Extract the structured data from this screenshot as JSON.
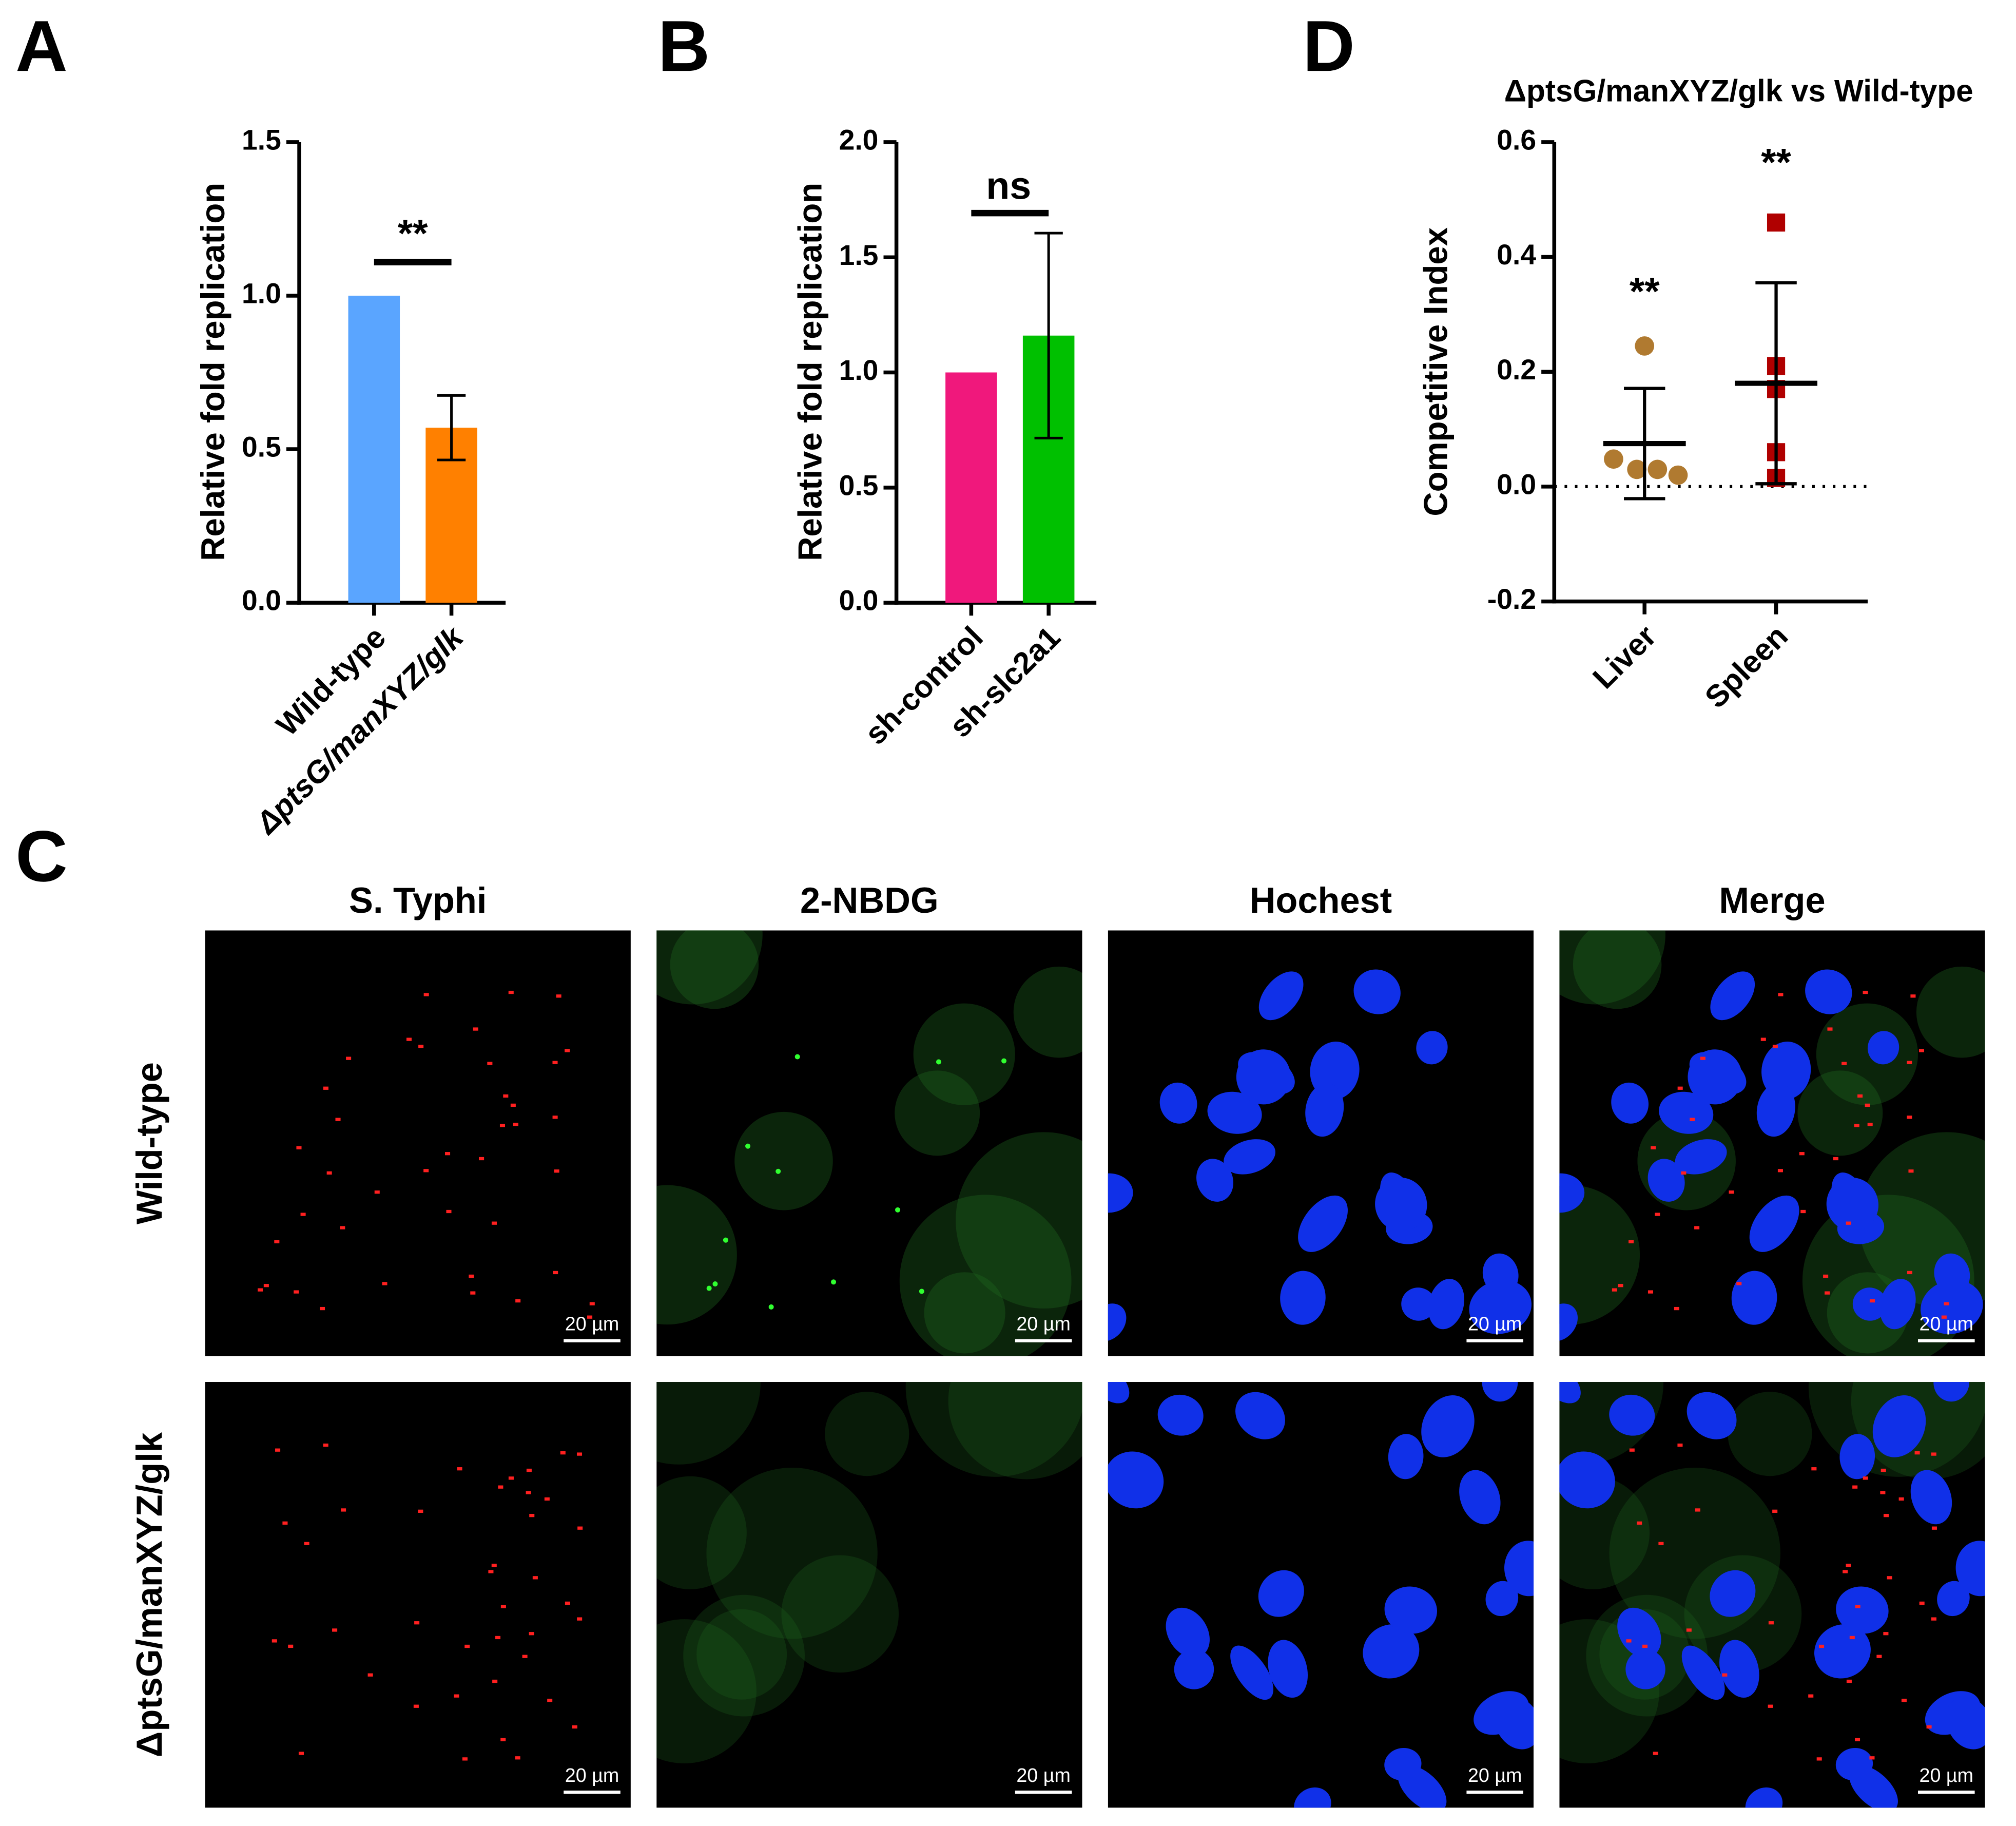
{
  "chart_data": [
    {
      "type": "bar",
      "panel": "A",
      "y_label": "Relative fold replication",
      "categories": [
        "Wild-type",
        "ΔptsG/manXYZ/glk"
      ],
      "values": [
        1.0,
        0.57
      ],
      "errors": [
        null,
        0.105
      ],
      "colors": [
        "#5aa5ff",
        "#ff8000"
      ],
      "ylim": [
        0,
        1.5
      ],
      "yticks": [
        {
          "value": 0,
          "label": "0.0"
        },
        {
          "value": 0.5,
          "label": "0.5"
        },
        {
          "value": 1,
          "label": "1.0"
        },
        {
          "value": 1.5,
          "label": "1.5"
        }
      ],
      "annotation": "**"
    },
    {
      "type": "bar",
      "panel": "B",
      "y_label": "Relative fold replication",
      "categories": [
        "sh-control",
        "sh-slc2a1"
      ],
      "values": [
        1.0,
        1.16
      ],
      "errors": [
        null,
        0.445
      ],
      "colors": [
        "#f0187c",
        "#00c000"
      ],
      "ylim": [
        0,
        2
      ],
      "yticks": [
        {
          "value": 0,
          "label": "0.0"
        },
        {
          "value": 0.5,
          "label": "0.5"
        },
        {
          "value": 1,
          "label": "1.0"
        },
        {
          "value": 1.5,
          "label": "1.5"
        },
        {
          "value": 2,
          "label": "2.0"
        }
      ],
      "annotation": "ns"
    },
    {
      "type": "scatter",
      "panel": "D",
      "title": "ΔptsG/manXYZ/glk vs Wild-type",
      "y_label": "Competitive Index",
      "categories": [
        "Liver",
        "Spleen"
      ],
      "series": [
        {
          "name": "Liver",
          "color": "#b07a30",
          "marker": "circle",
          "values": [
            0.245,
            0.048,
            0.03,
            0.03,
            0.02
          ],
          "mean": 0.075,
          "sd": 0.096,
          "annotation": "**"
        },
        {
          "name": "Spleen",
          "color": "#b00000",
          "marker": "square",
          "values": [
            0.46,
            0.21,
            0.17,
            0.06,
            0.015
          ],
          "mean": 0.18,
          "sd": 0.175,
          "annotation": "**"
        }
      ],
      "ylim": [
        -0.2,
        0.6
      ],
      "yticks": [
        {
          "value": -0.2,
          "label": "-0.2"
        },
        {
          "value": 0,
          "label": "0.0"
        },
        {
          "value": 0.2,
          "label": "0.2"
        },
        {
          "value": 0.4,
          "label": "0.4"
        },
        {
          "value": 0.6,
          "label": "0.6"
        }
      ]
    }
  ],
  "figure_c": {
    "panel": "C",
    "columns": [
      "S. Typhi",
      "2-NBDG",
      "Hochest",
      "Merge"
    ],
    "rows": [
      "Wild-type",
      "ΔptsG/manXYZ/glk"
    ],
    "scale_bar": "20 µm"
  }
}
